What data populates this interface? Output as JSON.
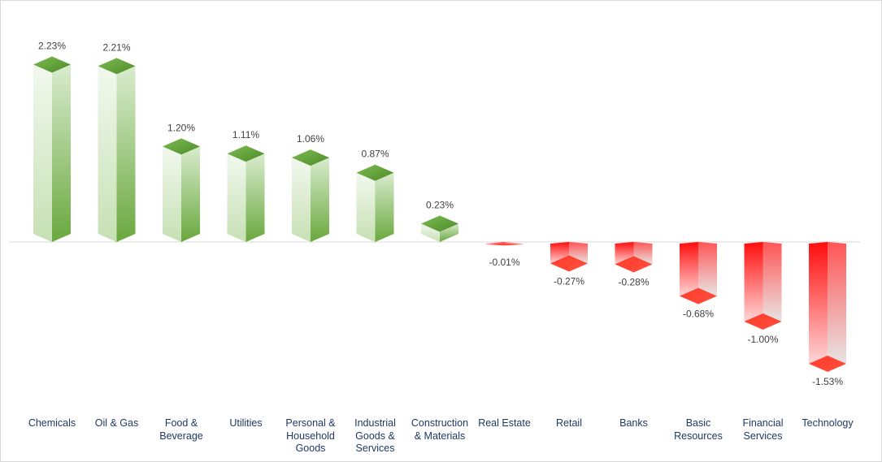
{
  "chart_data": {
    "type": "bar",
    "style": "3d-column",
    "title": "",
    "xlabel": "",
    "ylabel": "",
    "grid": false,
    "legend": "none",
    "ylim": [
      -1.6,
      2.3
    ],
    "categories": [
      "Chemicals",
      "Oil & Gas",
      "Food & Beverage",
      "Utilities",
      "Personal & Household Goods",
      "Industrial Goods & Services",
      "Construction & Materials",
      "Real Estate",
      "Retail",
      "Banks",
      "Basic Resources",
      "Financial Services",
      "Technology"
    ],
    "category_lines": [
      [
        "Chemicals"
      ],
      [
        "Oil & Gas"
      ],
      [
        "Food &",
        "Beverage"
      ],
      [
        "Utilities"
      ],
      [
        "Personal &",
        "Household",
        "Goods"
      ],
      [
        "Industrial",
        "Goods &",
        "Services"
      ],
      [
        "Construction",
        "& Materials"
      ],
      [
        "Real Estate"
      ],
      [
        "Retail"
      ],
      [
        "Banks"
      ],
      [
        "Basic",
        "Resources"
      ],
      [
        "Financial",
        "Services"
      ],
      [
        "Technology"
      ]
    ],
    "values": [
      2.23,
      2.21,
      1.2,
      1.11,
      1.06,
      0.87,
      0.23,
      -0.01,
      -0.27,
      -0.28,
      -0.68,
      -1.0,
      -1.53
    ],
    "labels": [
      "2.23%",
      "2.21%",
      "1.20%",
      "1.11%",
      "1.06%",
      "0.87%",
      "0.23%",
      "-0.01%",
      "-0.27%",
      "-0.28%",
      "-0.68%",
      "-1.00%",
      "-1.53%"
    ],
    "colors": {
      "positive": "#70ad47",
      "negative": "#ff0000"
    }
  }
}
